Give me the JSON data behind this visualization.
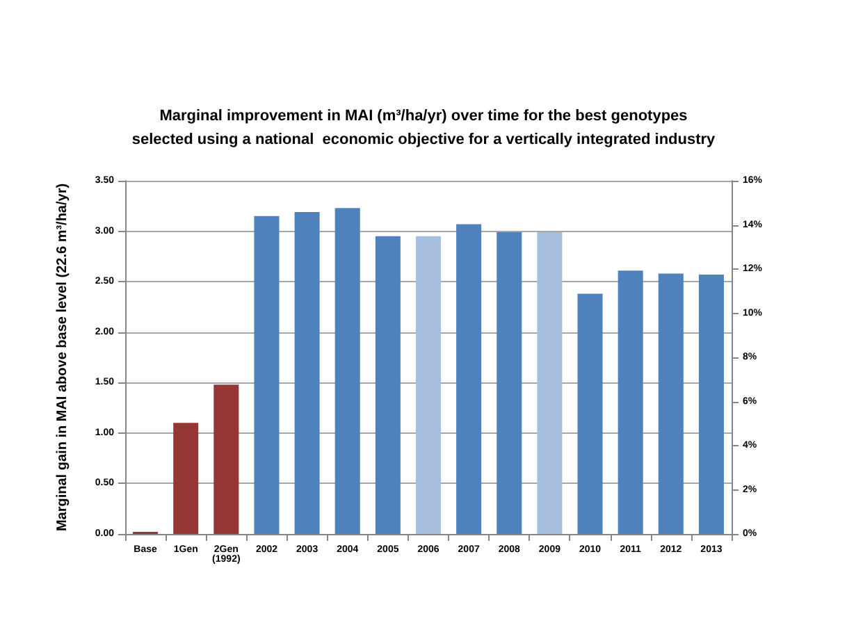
{
  "chart_data": {
    "type": "bar",
    "title": "Marginal improvement in MAI (m³/ha/yr) over time for the best genotypes\nselected using a national  economic objective for a vertically integrated industry",
    "ylabel": "Marginal gain in MAI above base level (22.6 m³/ha/yr)",
    "categories": [
      "Base",
      "1Gen",
      "2Gen\n(1992)",
      "2002",
      "2003",
      "2004",
      "2005",
      "2006",
      "2007",
      "2008",
      "2009",
      "2010",
      "2011",
      "2012",
      "2013"
    ],
    "values": [
      0.02,
      1.1,
      1.48,
      3.15,
      3.19,
      3.23,
      2.95,
      2.95,
      3.07,
      2.99,
      2.99,
      2.38,
      2.61,
      2.58,
      2.57
    ],
    "colors": [
      "#953735",
      "#953735",
      "#953735",
      "#4f81bd",
      "#4f81bd",
      "#4f81bd",
      "#4f81bd",
      "#a7bfdf",
      "#4f81bd",
      "#4f81bd",
      "#a7bfdf",
      "#4f81bd",
      "#4f81bd",
      "#4f81bd",
      "#4f81bd"
    ],
    "ylim": [
      0,
      3.5
    ],
    "yticks": [
      {
        "value": 0,
        "label": "0.00"
      },
      {
        "value": 0.5,
        "label": "0.50"
      },
      {
        "value": 1,
        "label": "1.00"
      },
      {
        "value": 1.5,
        "label": "1.50"
      },
      {
        "value": 2,
        "label": "2.00"
      },
      {
        "value": 2.5,
        "label": "2.50"
      },
      {
        "value": 3,
        "label": "3.00"
      },
      {
        "value": 3.5,
        "label": "3.50"
      }
    ],
    "y2lim": [
      0,
      16
    ],
    "y2ticks": [
      {
        "value": 0,
        "label": "0%"
      },
      {
        "value": 2,
        "label": "2%"
      },
      {
        "value": 4,
        "label": "4%"
      },
      {
        "value": 6,
        "label": "6%"
      },
      {
        "value": 8,
        "label": "8%"
      },
      {
        "value": 10,
        "label": "10%"
      },
      {
        "value": 12,
        "label": "12%"
      },
      {
        "value": 14,
        "label": "14%"
      },
      {
        "value": 16,
        "label": "16%"
      }
    ],
    "grid": "y"
  }
}
